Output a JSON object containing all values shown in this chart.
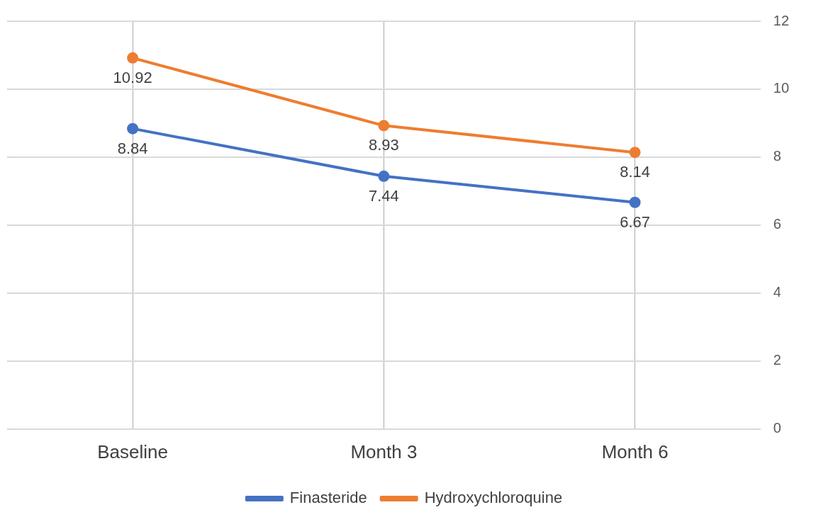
{
  "chart_data": {
    "type": "line",
    "categories": [
      "Baseline",
      "Month 3",
      "Month 6"
    ],
    "series": [
      {
        "name": "Finasteride",
        "color": "#4472c4",
        "values": [
          8.84,
          7.44,
          6.67
        ]
      },
      {
        "name": "Hydroxychloroquine",
        "color": "#ed7d31",
        "values": [
          10.92,
          8.93,
          8.14
        ]
      }
    ],
    "ylim": [
      0,
      12
    ],
    "yticks": [
      0,
      2,
      4,
      6,
      8,
      10,
      12
    ],
    "grid": true,
    "legend": "bottom",
    "marker": "circle",
    "line_style": "solid",
    "data_labels": true
  }
}
